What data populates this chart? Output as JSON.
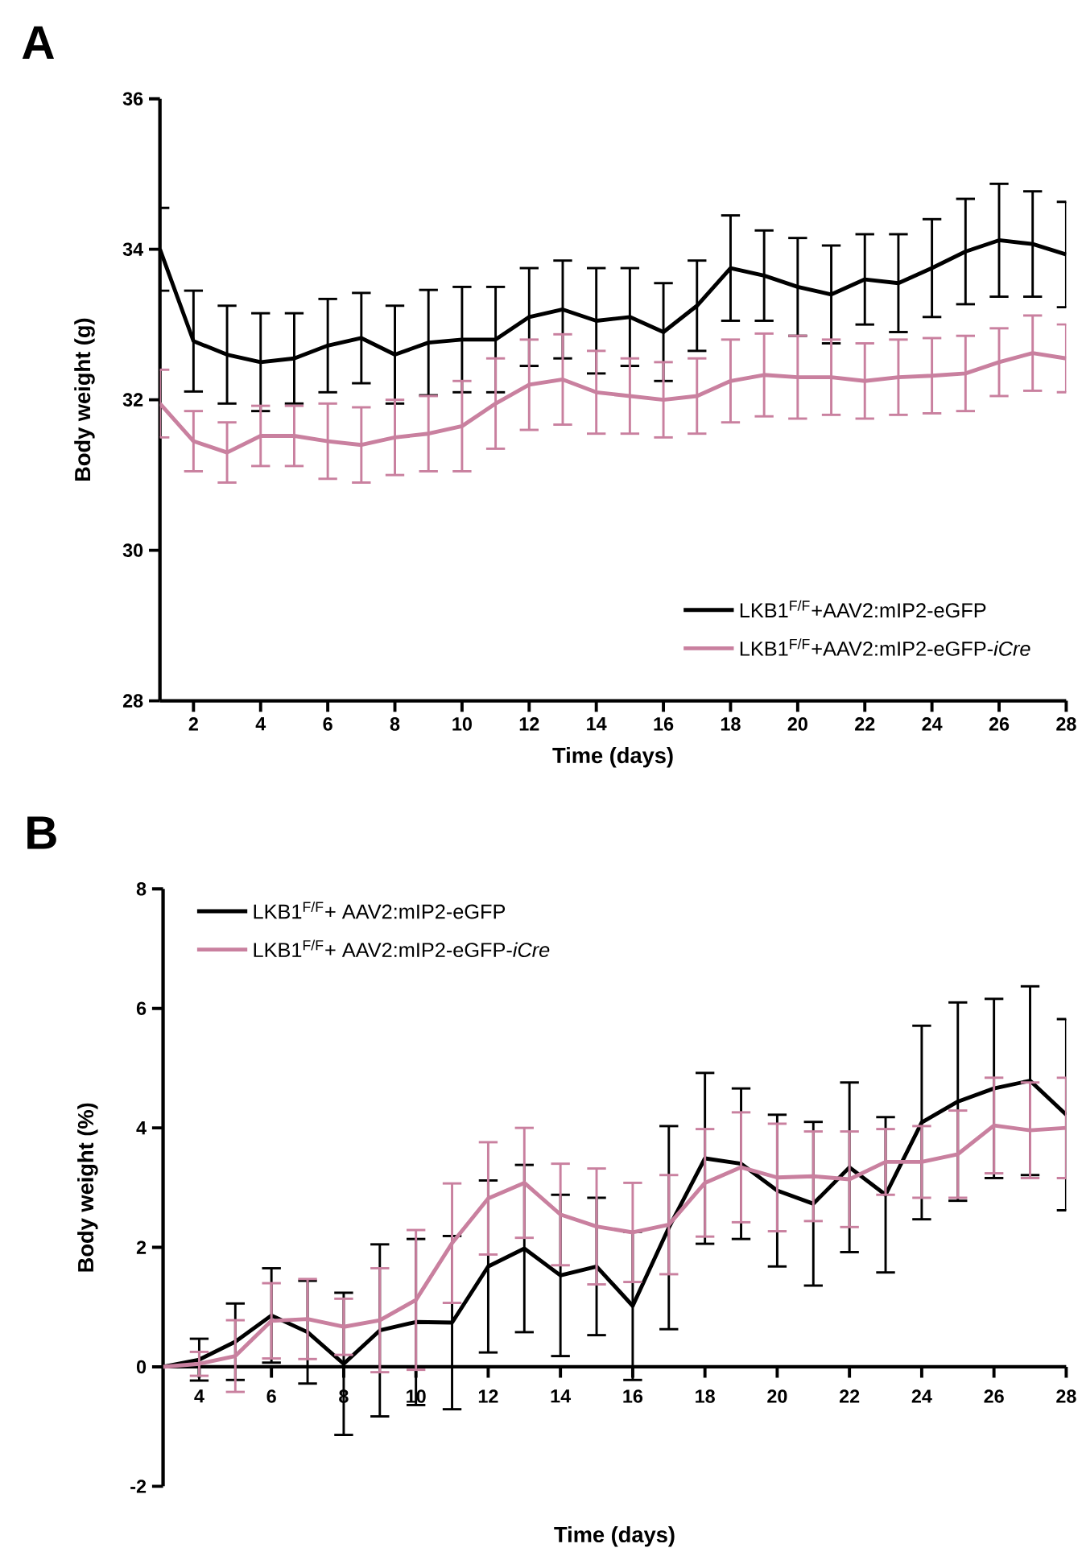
{
  "chart_data": [
    {
      "type": "line",
      "title": "A",
      "xlabel": "Time (days)",
      "ylabel": "Body weight (g)",
      "x": [
        1,
        2,
        3,
        4,
        5,
        6,
        7,
        8,
        9,
        10,
        11,
        12,
        13,
        14,
        15,
        16,
        17,
        18,
        19,
        20,
        21,
        22,
        23,
        24,
        25,
        26,
        27,
        28
      ],
      "xlim": [
        1,
        28
      ],
      "ylim": [
        28,
        36
      ],
      "xticks": [
        2,
        4,
        6,
        8,
        10,
        12,
        14,
        16,
        18,
        20,
        22,
        24,
        26,
        28
      ],
      "yticks": [
        28,
        30,
        32,
        34,
        36
      ],
      "legend": "bottom right",
      "grid": false,
      "marker": "none",
      "line_style": "solid",
      "series": [
        {
          "name": "LKB1$^{F/F}$+AAV2:mIP2-eGFP",
          "color": "#000000",
          "values": [
            34.0,
            32.78,
            32.6,
            32.5,
            32.55,
            32.72,
            32.82,
            32.6,
            32.76,
            32.8,
            32.8,
            33.1,
            33.2,
            33.05,
            33.1,
            32.9,
            33.25,
            33.75,
            33.65,
            33.5,
            33.4,
            33.6,
            33.55,
            33.75,
            33.97,
            34.12,
            34.07,
            33.93
          ],
          "errors": [
            0.55,
            0.67,
            0.65,
            0.65,
            0.6,
            0.62,
            0.6,
            0.65,
            0.7,
            0.7,
            0.7,
            0.65,
            0.65,
            0.7,
            0.65,
            0.65,
            0.6,
            0.7,
            0.6,
            0.65,
            0.65,
            0.6,
            0.65,
            0.65,
            0.7,
            0.75,
            0.7,
            0.7
          ]
        },
        {
          "name": "LKB1$^{F/F}$+AAV2:mIP2-eGFP-*iCre*",
          "color": "#c9809f",
          "values": [
            31.95,
            31.45,
            31.3,
            31.52,
            31.52,
            31.45,
            31.4,
            31.5,
            31.55,
            31.65,
            31.95,
            32.2,
            32.27,
            32.1,
            32.05,
            32.0,
            32.05,
            32.25,
            32.33,
            32.3,
            32.3,
            32.25,
            32.3,
            32.32,
            32.35,
            32.5,
            32.62,
            32.55
          ],
          "errors": [
            0.45,
            0.4,
            0.4,
            0.4,
            0.4,
            0.5,
            0.5,
            0.5,
            0.5,
            0.6,
            0.6,
            0.6,
            0.6,
            0.55,
            0.5,
            0.5,
            0.5,
            0.55,
            0.55,
            0.55,
            0.5,
            0.5,
            0.5,
            0.5,
            0.5,
            0.45,
            0.5,
            0.45
          ]
        }
      ]
    },
    {
      "type": "line",
      "title": "B",
      "xlabel": "Time (days)",
      "ylabel": "Body weight (%)",
      "x": [
        3,
        4,
        5,
        6,
        7,
        8,
        9,
        10,
        11,
        12,
        13,
        14,
        15,
        16,
        17,
        18,
        19,
        20,
        21,
        22,
        23,
        24,
        25,
        26,
        27,
        28
      ],
      "xlim": [
        3,
        28
      ],
      "ylim": [
        -2,
        8
      ],
      "xticks": [
        4,
        6,
        8,
        10,
        12,
        14,
        16,
        18,
        20,
        22,
        24,
        26,
        28
      ],
      "yticks": [
        -2,
        0,
        2,
        4,
        6,
        8
      ],
      "legend": "top left",
      "grid": false,
      "marker": "none",
      "line_style": "solid",
      "series": [
        {
          "name": "LKB1$^{F/F}$+ AAV2:mIP2-eGFP",
          "color": "#000000",
          "values": [
            0,
            0.12,
            0.42,
            0.86,
            0.58,
            0.05,
            0.61,
            0.75,
            0.74,
            1.68,
            1.98,
            1.53,
            1.68,
            1.02,
            2.33,
            3.49,
            3.4,
            2.95,
            2.73,
            3.34,
            2.88,
            4.09,
            4.44,
            4.66,
            4.79,
            4.22
          ],
          "errors": [
            null,
            0.35,
            0.64,
            0.79,
            0.86,
            1.19,
            1.44,
            1.39,
            1.45,
            1.44,
            1.4,
            1.35,
            1.15,
            1.24,
            1.7,
            1.43,
            1.26,
            1.27,
            1.37,
            1.42,
            1.3,
            1.62,
            1.66,
            1.5,
            1.58,
            1.6
          ]
        },
        {
          "name": "LKB1$^{F/F}$+ AAV2:mIP2-eGFP-*iCre*",
          "color": "#c9809f",
          "values": [
            0,
            0.05,
            0.18,
            0.77,
            0.8,
            0.67,
            0.78,
            1.12,
            2.07,
            2.82,
            3.08,
            2.55,
            2.35,
            2.25,
            2.38,
            3.08,
            3.34,
            3.17,
            3.19,
            3.14,
            3.43,
            3.43,
            3.56,
            4.04,
            3.96,
            4.0
          ],
          "errors": [
            null,
            0.2,
            0.6,
            0.63,
            0.67,
            0.47,
            0.87,
            1.17,
            1.0,
            0.94,
            0.92,
            0.85,
            0.97,
            0.83,
            0.83,
            0.9,
            0.92,
            0.9,
            0.75,
            0.8,
            0.55,
            0.6,
            0.73,
            0.8,
            0.8,
            0.84
          ]
        }
      ]
    }
  ]
}
